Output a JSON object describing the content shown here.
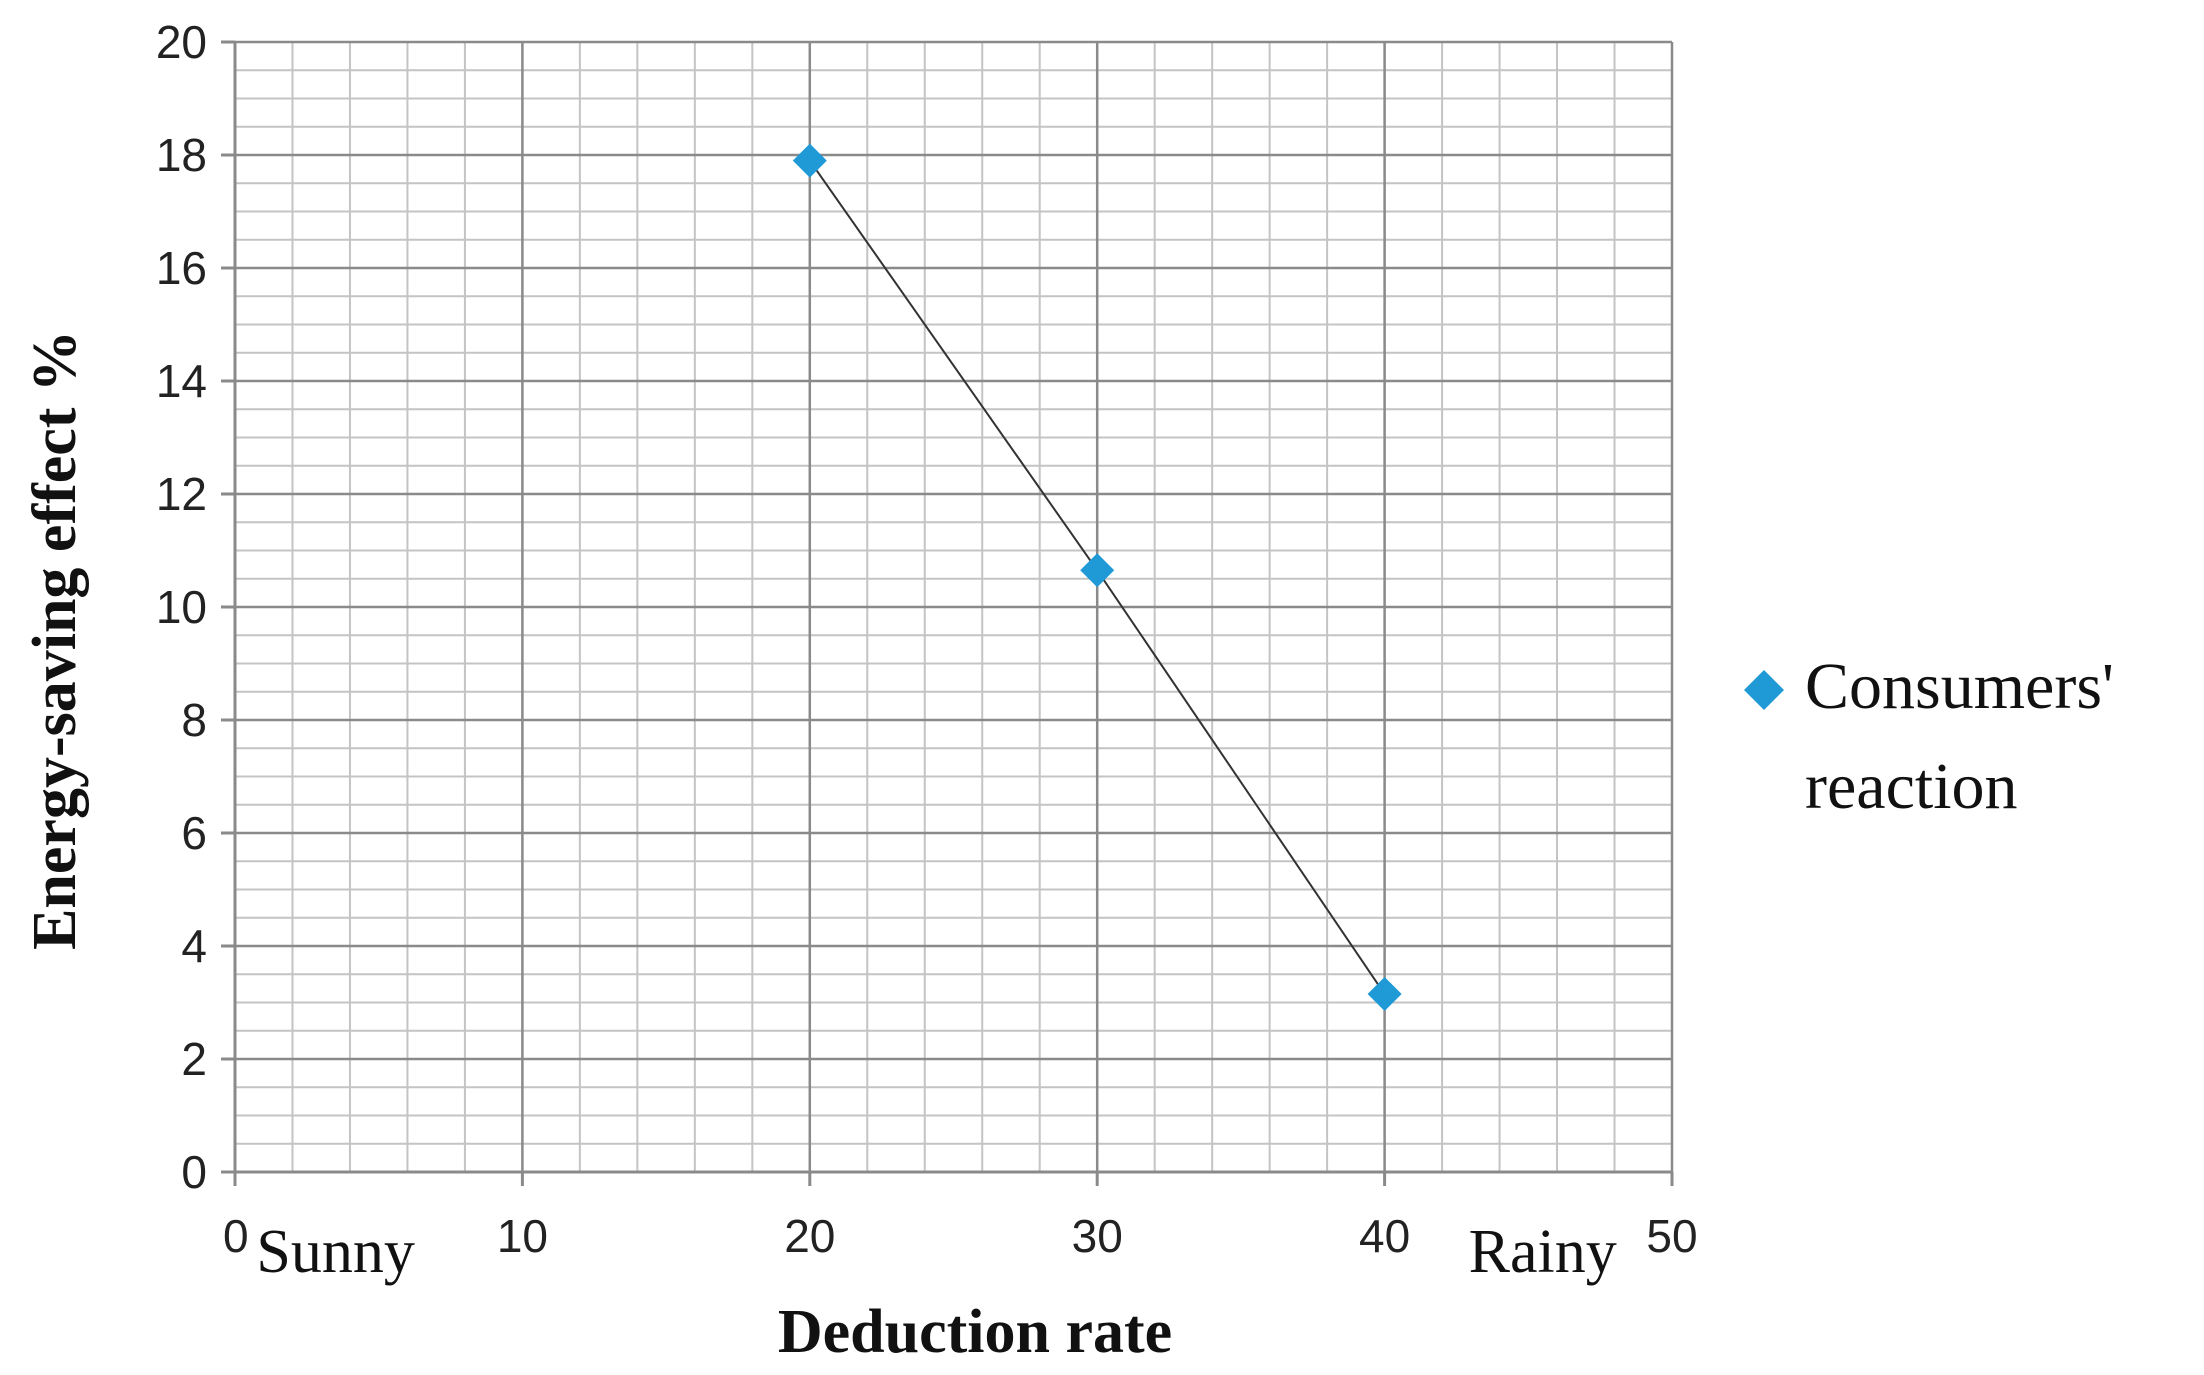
{
  "chart_data": {
    "type": "scatter",
    "title": "",
    "xlabel": "Deduction rate",
    "ylabel": "Energy-saving effect %",
    "xlim": [
      0,
      50
    ],
    "ylim": [
      0,
      20
    ],
    "x_ticks": [
      0,
      10,
      20,
      30,
      40,
      50
    ],
    "y_ticks": [
      0,
      2,
      4,
      6,
      8,
      10,
      12,
      14,
      16,
      18,
      20
    ],
    "grid": true,
    "annotations": [
      {
        "text": "Sunny",
        "x": 3.5
      },
      {
        "text": "Rainy",
        "x": 45.5
      }
    ],
    "series": [
      {
        "name": "Consumers' reaction",
        "legend_lines": [
          "Consumers'",
          "reaction"
        ],
        "marker": "diamond",
        "color": "#1f9ad6",
        "line_color": "#333333",
        "x": [
          20,
          30,
          40
        ],
        "y": [
          17.9,
          10.65,
          3.15
        ]
      }
    ],
    "legend_position": "right"
  }
}
